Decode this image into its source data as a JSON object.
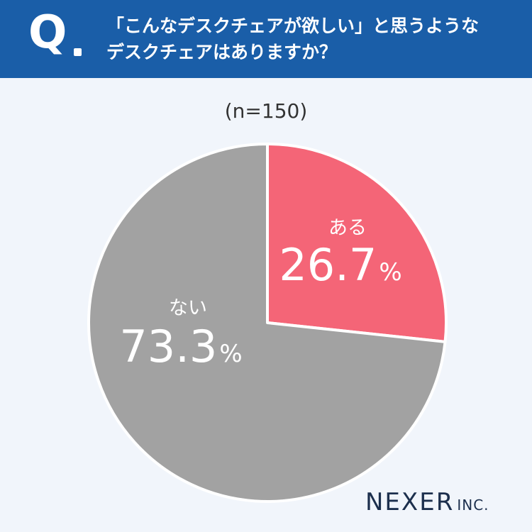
{
  "question": {
    "mark": "Q",
    "line1": "「こんなデスクチェアが欲しい」と思うような",
    "line2": "デスクチェアはありますか？"
  },
  "sample_label": "(n=150)",
  "brand": {
    "name": "NEXER",
    "suffix": "INC."
  },
  "colors": {
    "header": "#1a5ea8",
    "yes": "#f46577",
    "no": "#a2a2a2",
    "background": "#f1f5fb"
  },
  "chart_data": {
    "type": "pie",
    "title": "「こんなデスクチェアが欲しい」と思うようなデスクチェアはありますか？",
    "slices": [
      {
        "label": "ある",
        "value": 26.7,
        "display": "26.7",
        "unit": "%",
        "color": "#f46577"
      },
      {
        "label": "ない",
        "value": 73.3,
        "display": "73.3",
        "unit": "%",
        "color": "#a2a2a2"
      }
    ]
  }
}
